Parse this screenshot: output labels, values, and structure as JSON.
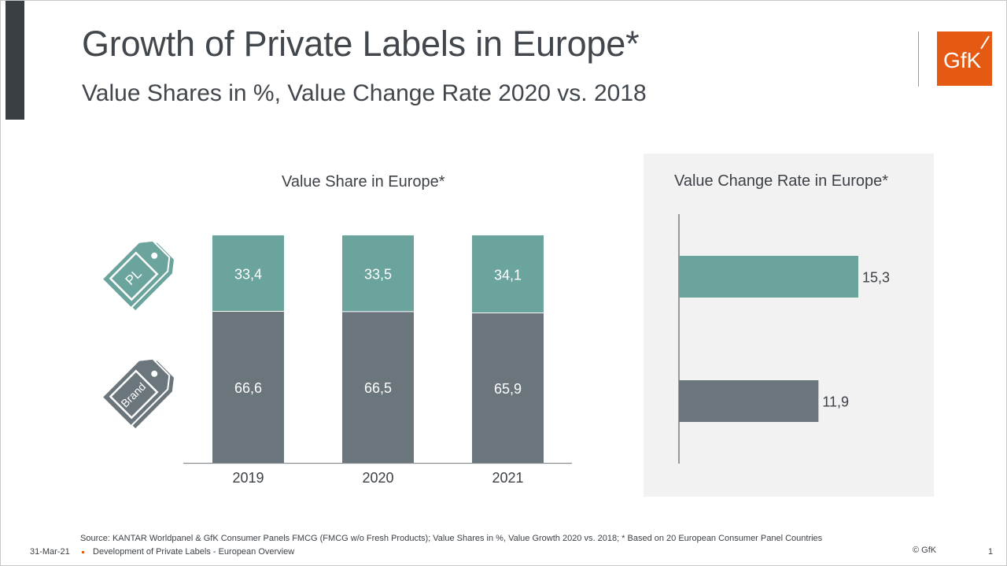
{
  "slide": {
    "title": "Growth of Private Labels in Europe*",
    "subtitle": "Value Shares in %, Value Change Rate 2020 vs. 2018",
    "logo_text": "GfK",
    "colors": {
      "private_label": "#6ba39d",
      "brand": "#6a757c",
      "accent_orange": "#e55a12",
      "panel_bg": "#f2f2f2",
      "title_text": "#41474d"
    }
  },
  "icons": {
    "pl_tag_label": "PL",
    "brand_tag_label": "Brand"
  },
  "chart_data": [
    {
      "type": "bar",
      "stacked": true,
      "orientation": "vertical",
      "title": "Value Share in Europe*",
      "categories": [
        "2019",
        "2020",
        "2021"
      ],
      "series": [
        {
          "name": "Brand",
          "values": [
            66.6,
            66.5,
            65.9
          ],
          "labels": [
            "66,6",
            "66,5",
            "65,9"
          ],
          "color": "#6a757c"
        },
        {
          "name": "Private Label",
          "values": [
            33.4,
            33.5,
            34.1
          ],
          "labels": [
            "33,4",
            "33,5",
            "34,1"
          ],
          "color": "#6ba39d"
        }
      ],
      "xlabel": "",
      "ylabel": "",
      "ylim": [
        0,
        100
      ],
      "grid": false,
      "legend": "left (tag icons)"
    },
    {
      "type": "bar",
      "orientation": "horizontal",
      "title": "Value Change Rate in Europe*",
      "categories": [
        "Private Label",
        "Brand"
      ],
      "values": [
        15.3,
        11.9
      ],
      "labels": [
        "15,3",
        "11,9"
      ],
      "colors": [
        "#6ba39d",
        "#6a757c"
      ],
      "xlim": [
        0,
        24
      ],
      "grid": false
    }
  ],
  "footer": {
    "source": "Source: KANTAR Worldpanel & GfK Consumer Panels FMCG (FMCG w/o Fresh Products); Value Shares in %, Value Growth 2020 vs. 2018; * Based on 20 European Consumer Panel Countries",
    "date": "31-Mar-21",
    "document_title": "Development of Private Labels - European Overview",
    "copyright": "© GfK",
    "page_number": "1"
  }
}
